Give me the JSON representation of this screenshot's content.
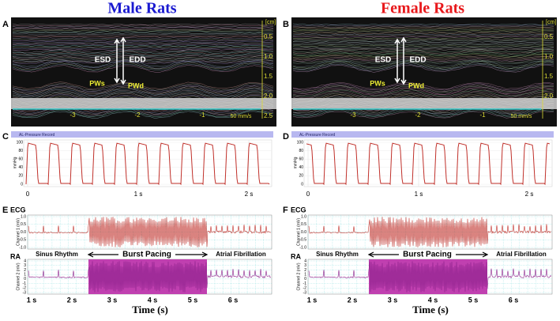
{
  "columns": [
    {
      "title": "Male Rats",
      "echo": {
        "letter": "A",
        "unit": "[cm]",
        "depth_ticks": [
          "0.5",
          "1.0",
          "1.5",
          "2.0",
          "2.5"
        ],
        "time_ticks": [
          "-3",
          "-2",
          "-1"
        ],
        "speed": "50 mm/s",
        "esd": "ESD",
        "edd": "EDD",
        "pws": "PWs",
        "pwd": "PWd"
      },
      "pressure": {
        "letter": "C",
        "header": "AL-Pressure Record",
        "ylabel": "mmHg",
        "yticks": [
          "100",
          "80",
          "60",
          "40",
          "20",
          "0"
        ],
        "xticks": [
          "0",
          "1 s",
          "2 s"
        ]
      },
      "ecg": {
        "letter": "E",
        "ecg_label": "ECG",
        "ch1_label": "Channel 1 (mV)",
        "ch1_ticks": [
          "1.0",
          "0.5",
          "0.0",
          "-0.5",
          "-1.0"
        ],
        "ra_label": "RA",
        "ch2_label": "Channel 2 (mV)",
        "ch2_ticks": [
          "4",
          "3",
          "2",
          "1",
          "0",
          "-1",
          "-2",
          "-3"
        ],
        "phases": [
          "Sinus Rhythm",
          "Burst Pacing",
          "Atrial Fibrillation"
        ],
        "xticks": [
          "1 s",
          "2 s",
          "3 s",
          "4 s",
          "5 s",
          "6 s"
        ],
        "xlabel": "Time (s)"
      }
    },
    {
      "title": "Female Rats",
      "echo": {
        "letter": "B",
        "unit": "[cm]",
        "depth_ticks": [
          "0.5",
          "1.0",
          "1.5",
          "2.0"
        ],
        "time_ticks": [
          "-3",
          "-2",
          "-1"
        ],
        "speed": "50 mm/s",
        "esd": "ESD",
        "edd": "EDD",
        "pws": "PWs",
        "pwd": "PWd"
      },
      "pressure": {
        "letter": "D",
        "header": "AL-Pressure Record",
        "ylabel": "mmHg",
        "yticks": [
          "100",
          "80",
          "60",
          "40",
          "20",
          "0"
        ],
        "xticks": [
          "0",
          "1 s",
          "2 s"
        ]
      },
      "ecg": {
        "letter": "F",
        "ecg_label": "ECG",
        "ch1_label": "Channel 1 (mV)",
        "ch1_ticks": [
          "1.0",
          "0.5",
          "0.0",
          "-0.5",
          "-1.0"
        ],
        "ra_label": "RA",
        "ch2_label": "Channel 2 (mV)",
        "ch2_ticks": [
          "4",
          "3",
          "2",
          "1",
          "0",
          "-1",
          "-2",
          "-3"
        ],
        "phases": [
          "Sinus Rhythm",
          "Burst Pacing",
          "Atrial Fibrillation"
        ],
        "xticks": [
          "1 s",
          "2 s",
          "3 s",
          "4 s",
          "5 s",
          "6 s"
        ],
        "xlabel": "Time (s)"
      }
    }
  ]
}
